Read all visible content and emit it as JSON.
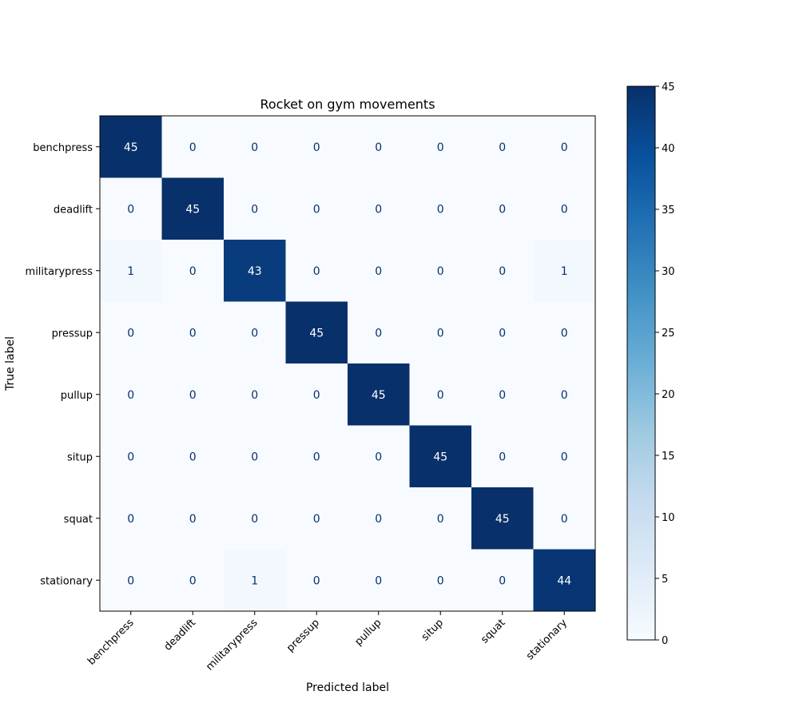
{
  "chart_data": {
    "type": "heatmap",
    "title": "Rocket on gym movements",
    "xlabel": "Predicted label",
    "ylabel": "True label",
    "x_categories": [
      "benchpress",
      "deadlift",
      "militarypress",
      "pressup",
      "pullup",
      "situp",
      "squat",
      "stationary"
    ],
    "y_categories": [
      "benchpress",
      "deadlift",
      "militarypress",
      "pressup",
      "pullup",
      "situp",
      "squat",
      "stationary"
    ],
    "matrix": [
      [
        45,
        0,
        0,
        0,
        0,
        0,
        0,
        0
      ],
      [
        0,
        45,
        0,
        0,
        0,
        0,
        0,
        0
      ],
      [
        1,
        0,
        43,
        0,
        0,
        0,
        0,
        1
      ],
      [
        0,
        0,
        0,
        45,
        0,
        0,
        0,
        0
      ],
      [
        0,
        0,
        0,
        0,
        45,
        0,
        0,
        0
      ],
      [
        0,
        0,
        0,
        0,
        0,
        45,
        0,
        0
      ],
      [
        0,
        0,
        0,
        0,
        0,
        0,
        45,
        0
      ],
      [
        0,
        0,
        1,
        0,
        0,
        0,
        0,
        44
      ]
    ],
    "colormap": "Blues",
    "colorbar": {
      "range": [
        0,
        45
      ],
      "ticks": [
        0,
        5,
        10,
        15,
        20,
        25,
        30,
        35,
        40,
        45
      ],
      "tick_labels": [
        "0",
        "5",
        "10",
        "15",
        "20",
        "25",
        "30",
        "35",
        "40",
        "45"
      ]
    }
  }
}
